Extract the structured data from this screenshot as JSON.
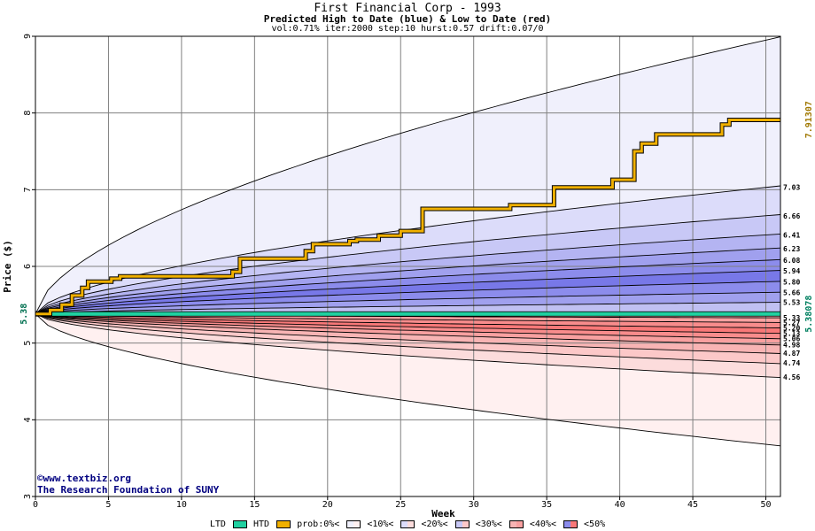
{
  "chart_data": {
    "type": "area",
    "title": "First Financial Corp - 1993",
    "subtitle": "Predicted High to Date (blue) &  Low to Date (red)",
    "params": "vol:0.71% iter:2000 step:10 hurst:0.57 drift:0.07/0",
    "xlabel": "Week",
    "ylabel": "Price ($)",
    "xlim": [
      0,
      51
    ],
    "ylim": [
      3,
      9
    ],
    "x_ticks": [
      0,
      5,
      10,
      15,
      20,
      25,
      30,
      35,
      40,
      45,
      50
    ],
    "y_ticks": [
      3,
      4,
      5,
      6,
      7,
      8,
      9
    ],
    "grid": true,
    "start_price": 5.38,
    "start_price_label": "5.38",
    "right_labels": [
      {
        "value": 7.91307,
        "text": "7.91307",
        "color": "#a07800"
      },
      {
        "value": 5.38078,
        "text": "5.38078",
        "color": "#008060"
      }
    ],
    "high_band_end_values": [
      8.95,
      7.03,
      6.66,
      6.41,
      6.23,
      6.08,
      5.94,
      5.8,
      5.66,
      5.53
    ],
    "high_band_labels": [
      "7.03",
      "6.66",
      "6.41",
      "6.23",
      "6.08",
      "5.94",
      "5.80",
      "5.66",
      "5.53"
    ],
    "low_band_end_values": [
      5.33,
      5.27,
      5.2,
      5.13,
      5.06,
      4.98,
      4.87,
      4.74,
      4.56,
      3.68
    ],
    "low_band_labels": [
      "5.33",
      "5.27",
      "5.20",
      "5.13",
      "5.06",
      "4.98",
      "4.87",
      "4.74",
      "4.56"
    ],
    "high_fills": [
      "#f0f0fc",
      "#dcdcfa",
      "#c8c8f6",
      "#b4b4f2",
      "#a0a0ee",
      "#8c8cec",
      "#7878e8",
      "#8c8cec",
      "#a0a0ee",
      "#c0c0f2"
    ],
    "low_fills": [
      "#f8b4b4",
      "#f8a0a0",
      "#f88c8c",
      "#f87878",
      "#f88c8c",
      "#f8a0a0",
      "#f8b4b4",
      "#fcc8c8",
      "#fcdcdc",
      "#fff0f0"
    ],
    "htd_series": {
      "name": "HTD",
      "color": "#f0b000",
      "points": [
        [
          0,
          5.38
        ],
        [
          1,
          5.38
        ],
        [
          1,
          5.43
        ],
        [
          1.8,
          5.43
        ],
        [
          1.8,
          5.5
        ],
        [
          2.5,
          5.5
        ],
        [
          2.5,
          5.62
        ],
        [
          3.2,
          5.62
        ],
        [
          3.2,
          5.72
        ],
        [
          3.6,
          5.72
        ],
        [
          3.6,
          5.8
        ],
        [
          5.2,
          5.8
        ],
        [
          5.2,
          5.84
        ],
        [
          5.8,
          5.84
        ],
        [
          5.8,
          5.87
        ],
        [
          13.5,
          5.87
        ],
        [
          13.5,
          5.93
        ],
        [
          14,
          5.93
        ],
        [
          14,
          6.1
        ],
        [
          18.5,
          6.1
        ],
        [
          18.5,
          6.2
        ],
        [
          19,
          6.2
        ],
        [
          19,
          6.29
        ],
        [
          21.5,
          6.29
        ],
        [
          21.5,
          6.33
        ],
        [
          22,
          6.33
        ],
        [
          22,
          6.35
        ],
        [
          23.5,
          6.35
        ],
        [
          23.5,
          6.4
        ],
        [
          25,
          6.4
        ],
        [
          25,
          6.46
        ],
        [
          26.5,
          6.46
        ],
        [
          26.5,
          6.75
        ],
        [
          32.5,
          6.75
        ],
        [
          32.5,
          6.8
        ],
        [
          35.5,
          6.8
        ],
        [
          35.5,
          7.03
        ],
        [
          39.5,
          7.03
        ],
        [
          39.5,
          7.13
        ],
        [
          41,
          7.13
        ],
        [
          41,
          7.5
        ],
        [
          41.5,
          7.5
        ],
        [
          41.5,
          7.6
        ],
        [
          42.5,
          7.6
        ],
        [
          42.5,
          7.72
        ],
        [
          47,
          7.72
        ],
        [
          47,
          7.85
        ],
        [
          47.5,
          7.85
        ],
        [
          47.5,
          7.91
        ],
        [
          51,
          7.91
        ]
      ]
    },
    "ltd_series": {
      "name": "LTD",
      "color": "#20d0a0",
      "value": 5.38
    }
  },
  "credits": {
    "line1": "©www.textbiz.org",
    "line2": "The Research Foundation of SUNY"
  },
  "legend": {
    "ltd": "LTD",
    "htd": "HTD",
    "prob": "prob:0%<",
    "p10": "<10%<",
    "p20": "<20%<",
    "p30": "<30%<",
    "p40": "<40%<",
    "p50": "<50%",
    "colors": {
      "ltd": "#20d0a0",
      "htd": "#f0b000",
      "p10": [
        "#f0f0fc",
        "#fff0f0"
      ],
      "p20": [
        "#dcdcfa",
        "#fcdcdc"
      ],
      "p30": [
        "#c8c8f6",
        "#fcc8c8"
      ],
      "p40": [
        "#f8b4b4",
        "#f8a0a0"
      ],
      "p50": [
        "#8c8cec",
        "#f87878"
      ]
    }
  }
}
